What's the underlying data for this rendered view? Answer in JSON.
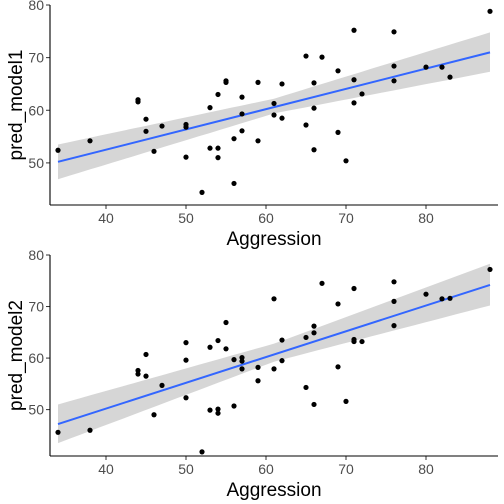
{
  "chart_data": [
    {
      "type": "scatter",
      "title": "",
      "xlabel": "Aggression",
      "ylabel": "pred_model1",
      "xlim": [
        33,
        89
      ],
      "ylim": [
        42,
        80
      ],
      "x_ticks": [
        40,
        50,
        60,
        70,
        80
      ],
      "y_ticks": [
        50,
        60,
        70,
        80
      ],
      "grid": false,
      "point_color": "#000000",
      "fit_line": {
        "method": "linear",
        "color": "#3366FF",
        "x": [
          34,
          88
        ],
        "y": [
          50.2,
          71.0
        ]
      },
      "confidence_band": {
        "color": "#999999",
        "x": [
          34,
          61,
          88
        ],
        "lower": [
          46.9,
          59.4,
          67.3
        ],
        "upper": [
          53.5,
          62.2,
          74.8
        ]
      },
      "points": [
        {
          "x": 34,
          "y": 52.4
        },
        {
          "x": 38,
          "y": 54.2
        },
        {
          "x": 44,
          "y": 61.6
        },
        {
          "x": 44,
          "y": 62.0
        },
        {
          "x": 45,
          "y": 58.3
        },
        {
          "x": 45,
          "y": 56.0
        },
        {
          "x": 46,
          "y": 52.2
        },
        {
          "x": 47,
          "y": 57.0
        },
        {
          "x": 50,
          "y": 57.3
        },
        {
          "x": 50,
          "y": 56.8
        },
        {
          "x": 50,
          "y": 51.1
        },
        {
          "x": 52,
          "y": 44.4
        },
        {
          "x": 53,
          "y": 60.5
        },
        {
          "x": 53,
          "y": 52.8
        },
        {
          "x": 54,
          "y": 52.8
        },
        {
          "x": 54,
          "y": 51.0
        },
        {
          "x": 54,
          "y": 63.0
        },
        {
          "x": 55,
          "y": 65.6
        },
        {
          "x": 55,
          "y": 65.3
        },
        {
          "x": 56,
          "y": 46.1
        },
        {
          "x": 56,
          "y": 54.6
        },
        {
          "x": 57,
          "y": 62.5
        },
        {
          "x": 57,
          "y": 59.3
        },
        {
          "x": 57,
          "y": 56.1
        },
        {
          "x": 59,
          "y": 65.3
        },
        {
          "x": 59,
          "y": 54.2
        },
        {
          "x": 61,
          "y": 61.3
        },
        {
          "x": 61,
          "y": 59.1
        },
        {
          "x": 62,
          "y": 58.5
        },
        {
          "x": 62,
          "y": 65.0
        },
        {
          "x": 65,
          "y": 70.3
        },
        {
          "x": 65,
          "y": 57.2
        },
        {
          "x": 66,
          "y": 65.2
        },
        {
          "x": 66,
          "y": 60.4
        },
        {
          "x": 66,
          "y": 52.5
        },
        {
          "x": 67,
          "y": 70.1
        },
        {
          "x": 69,
          "y": 67.5
        },
        {
          "x": 69,
          "y": 55.8
        },
        {
          "x": 70,
          "y": 50.4
        },
        {
          "x": 71,
          "y": 75.2
        },
        {
          "x": 71,
          "y": 65.8
        },
        {
          "x": 71,
          "y": 61.4
        },
        {
          "x": 72,
          "y": 63.1
        },
        {
          "x": 76,
          "y": 74.9
        },
        {
          "x": 76,
          "y": 68.4
        },
        {
          "x": 76,
          "y": 65.6
        },
        {
          "x": 80,
          "y": 68.2
        },
        {
          "x": 82,
          "y": 68.2
        },
        {
          "x": 83,
          "y": 66.3
        },
        {
          "x": 88,
          "y": 78.8
        }
      ]
    },
    {
      "type": "scatter",
      "title": "",
      "xlabel": "Aggression",
      "ylabel": "pred_model2",
      "xlim": [
        33,
        89
      ],
      "ylim": [
        41,
        80
      ],
      "x_ticks": [
        40,
        50,
        60,
        70,
        80
      ],
      "y_ticks": [
        50,
        60,
        70,
        80
      ],
      "grid": false,
      "point_color": "#000000",
      "fit_line": {
        "method": "linear",
        "color": "#3366FF",
        "x": [
          34,
          88
        ],
        "y": [
          47.2,
          74.2
        ]
      },
      "confidence_band": {
        "color": "#999999",
        "x": [
          34,
          61,
          88
        ],
        "lower": [
          43.5,
          59.3,
          70.2
        ],
        "upper": [
          51.0,
          62.8,
          78.3
        ]
      },
      "points": [
        {
          "x": 34,
          "y": 45.6
        },
        {
          "x": 38,
          "y": 46.0
        },
        {
          "x": 44,
          "y": 57.6
        },
        {
          "x": 44,
          "y": 56.9
        },
        {
          "x": 45,
          "y": 60.7
        },
        {
          "x": 45,
          "y": 56.5
        },
        {
          "x": 46,
          "y": 49.0
        },
        {
          "x": 47,
          "y": 54.7
        },
        {
          "x": 50,
          "y": 63.0
        },
        {
          "x": 50,
          "y": 59.6
        },
        {
          "x": 50,
          "y": 52.3
        },
        {
          "x": 52,
          "y": 41.8
        },
        {
          "x": 53,
          "y": 62.1
        },
        {
          "x": 53,
          "y": 49.9
        },
        {
          "x": 54,
          "y": 63.4
        },
        {
          "x": 54,
          "y": 50.1
        },
        {
          "x": 54,
          "y": 49.3
        },
        {
          "x": 55,
          "y": 66.9
        },
        {
          "x": 55,
          "y": 61.8
        },
        {
          "x": 56,
          "y": 59.7
        },
        {
          "x": 56,
          "y": 50.7
        },
        {
          "x": 57,
          "y": 60.1
        },
        {
          "x": 57,
          "y": 59.4
        },
        {
          "x": 57,
          "y": 57.9
        },
        {
          "x": 59,
          "y": 58.2
        },
        {
          "x": 59,
          "y": 55.6
        },
        {
          "x": 61,
          "y": 71.5
        },
        {
          "x": 61,
          "y": 57.9
        },
        {
          "x": 62,
          "y": 63.5
        },
        {
          "x": 62,
          "y": 59.5
        },
        {
          "x": 65,
          "y": 64.0
        },
        {
          "x": 65,
          "y": 54.3
        },
        {
          "x": 66,
          "y": 66.2
        },
        {
          "x": 66,
          "y": 64.9
        },
        {
          "x": 66,
          "y": 51.0
        },
        {
          "x": 67,
          "y": 74.5
        },
        {
          "x": 69,
          "y": 70.5
        },
        {
          "x": 69,
          "y": 58.3
        },
        {
          "x": 70,
          "y": 51.6
        },
        {
          "x": 71,
          "y": 73.5
        },
        {
          "x": 71,
          "y": 63.6
        },
        {
          "x": 71,
          "y": 63.2
        },
        {
          "x": 72,
          "y": 63.2
        },
        {
          "x": 76,
          "y": 74.8
        },
        {
          "x": 76,
          "y": 71.0
        },
        {
          "x": 76,
          "y": 66.3
        },
        {
          "x": 80,
          "y": 72.4
        },
        {
          "x": 82,
          "y": 71.5
        },
        {
          "x": 83,
          "y": 71.6
        },
        {
          "x": 88,
          "y": 77.2
        }
      ]
    }
  ]
}
